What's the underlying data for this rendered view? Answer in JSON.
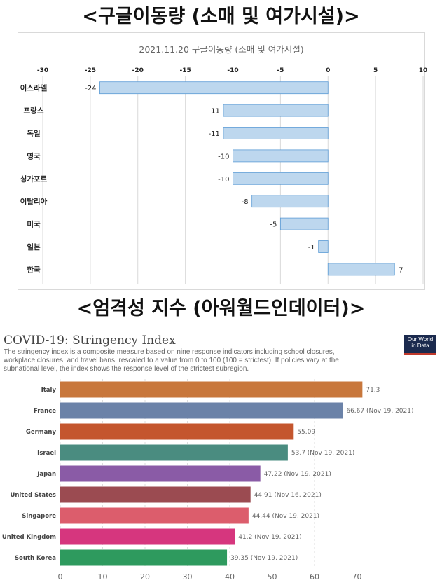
{
  "headings": {
    "top": "<구글이동량 (소매 및 여가시설)>",
    "bottom": "<엄격성 지수 (아워월드인데이터)>"
  },
  "owid": {
    "title": "COVID-19: Stringency Index",
    "subtitle": "The stringency index is a composite measure based on nine response indicators including school closures, workplace closures, and travel bans, rescaled to a value from 0 to 100 (100 = strictest). If policies vary at the subnational level, the index shows the response level of the strictest subregion.",
    "logo_line1": "Our World",
    "logo_line2": "in Data"
  },
  "chart_data": [
    {
      "type": "bar",
      "orientation": "horizontal",
      "title": "2021.11.20 구글이동량 (소매 및 여가시설)",
      "categories": [
        "이스라엘",
        "프랑스",
        "독일",
        "영국",
        "싱가포르",
        "이탈리아",
        "미국",
        "일본",
        "한국"
      ],
      "values": [
        -24,
        -11,
        -11,
        -10,
        -10,
        -8,
        -5,
        -1,
        7
      ],
      "xlim": [
        -30,
        10
      ],
      "xticks": [
        -30,
        -25,
        -20,
        -15,
        -10,
        -5,
        0,
        5,
        10
      ],
      "xaxis_position": "top",
      "grid": true,
      "bar_color": "#bdd7ee",
      "bar_edge_color": "#5b9bd5"
    },
    {
      "type": "bar",
      "orientation": "horizontal",
      "title": "COVID-19: Stringency Index",
      "categories": [
        "Italy",
        "France",
        "Germany",
        "Israel",
        "Japan",
        "United States",
        "Singapore",
        "United Kingdom",
        "South Korea"
      ],
      "values": [
        71.3,
        66.67,
        55.09,
        53.7,
        47.22,
        44.91,
        44.44,
        41.2,
        39.35
      ],
      "value_labels": [
        "71.3",
        "66.67 (Nov 19, 2021)",
        "55.09",
        "53.7 (Nov 19, 2021)",
        "47.22 (Nov 19, 2021)",
        "44.91 (Nov 16, 2021)",
        "44.44 (Nov 19, 2021)",
        "41.2 (Nov 19, 2021)",
        "39.35 (Nov 19, 2021)"
      ],
      "colors": [
        "#c8773c",
        "#6b82a8",
        "#c4562e",
        "#4a8c80",
        "#8a5ba6",
        "#9b4b51",
        "#dc5d6c",
        "#d6367e",
        "#2e9a5e"
      ],
      "xlim": [
        0,
        70
      ],
      "xticks": [
        0,
        10,
        20,
        30,
        40,
        50,
        60,
        70
      ],
      "xaxis_position": "bottom",
      "grid": true
    }
  ]
}
